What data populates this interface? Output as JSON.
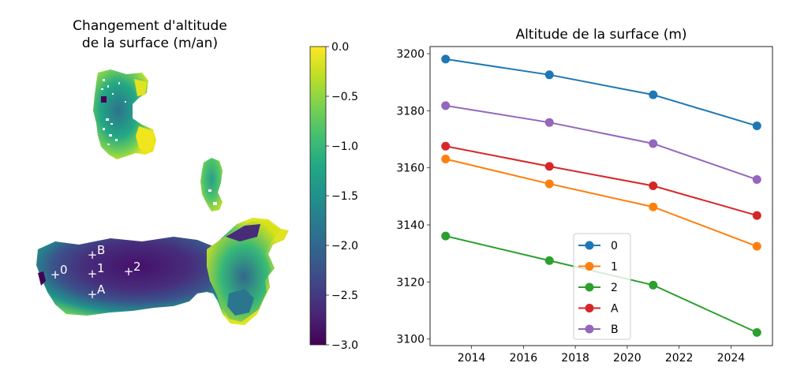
{
  "chart_data": [
    {
      "type": "heatmap",
      "title_lines": [
        "Changement d'altitude",
        "de la surface (m/an)"
      ],
      "colormap": "viridis",
      "colorbar": {
        "range": [
          -3.0,
          0.0
        ],
        "ticks": [
          0.0,
          -0.5,
          -1.0,
          -1.5,
          -2.0,
          -2.5,
          -3.0
        ],
        "tick_labels": [
          "0.0",
          "−0.5",
          "−1.0",
          "−1.5",
          "−2.0",
          "−2.5",
          "−3.0"
        ]
      },
      "points": [
        {
          "label": "0",
          "marker": "+"
        },
        {
          "label": "1",
          "marker": "+"
        },
        {
          "label": "2",
          "marker": "+"
        },
        {
          "label": "A",
          "marker": "+"
        },
        {
          "label": "B",
          "marker": "+"
        }
      ],
      "point_color": "#ffffff"
    },
    {
      "type": "line",
      "title": "Altitude de la surface (m)",
      "xlabel": "",
      "ylabel": "",
      "xlim": [
        2012.4,
        2025.6
      ],
      "ylim": [
        3097.7,
        3202.5
      ],
      "xticks": [
        2014,
        2016,
        2018,
        2020,
        2022,
        2024
      ],
      "yticks": [
        3100,
        3120,
        3140,
        3160,
        3180,
        3200
      ],
      "x": [
        2013,
        2017,
        2021,
        2025
      ],
      "grid": false,
      "legend_position": "lower-center",
      "series": [
        {
          "name": "0",
          "color": "#1f77b4",
          "values": [
            3198.1,
            3192.6,
            3185.6,
            3174.7
          ]
        },
        {
          "name": "1",
          "color": "#ff7f0e",
          "values": [
            3163.1,
            3154.4,
            3146.3,
            3132.5
          ]
        },
        {
          "name": "2",
          "color": "#2ca02c",
          "values": [
            3136.1,
            3127.5,
            3118.9,
            3102.3
          ]
        },
        {
          "name": "A",
          "color": "#d62728",
          "values": [
            3167.6,
            3160.5,
            3153.7,
            3143.3
          ]
        },
        {
          "name": "B",
          "color": "#9467bd",
          "values": [
            3181.8,
            3175.9,
            3168.5,
            3155.9
          ]
        }
      ]
    }
  ]
}
